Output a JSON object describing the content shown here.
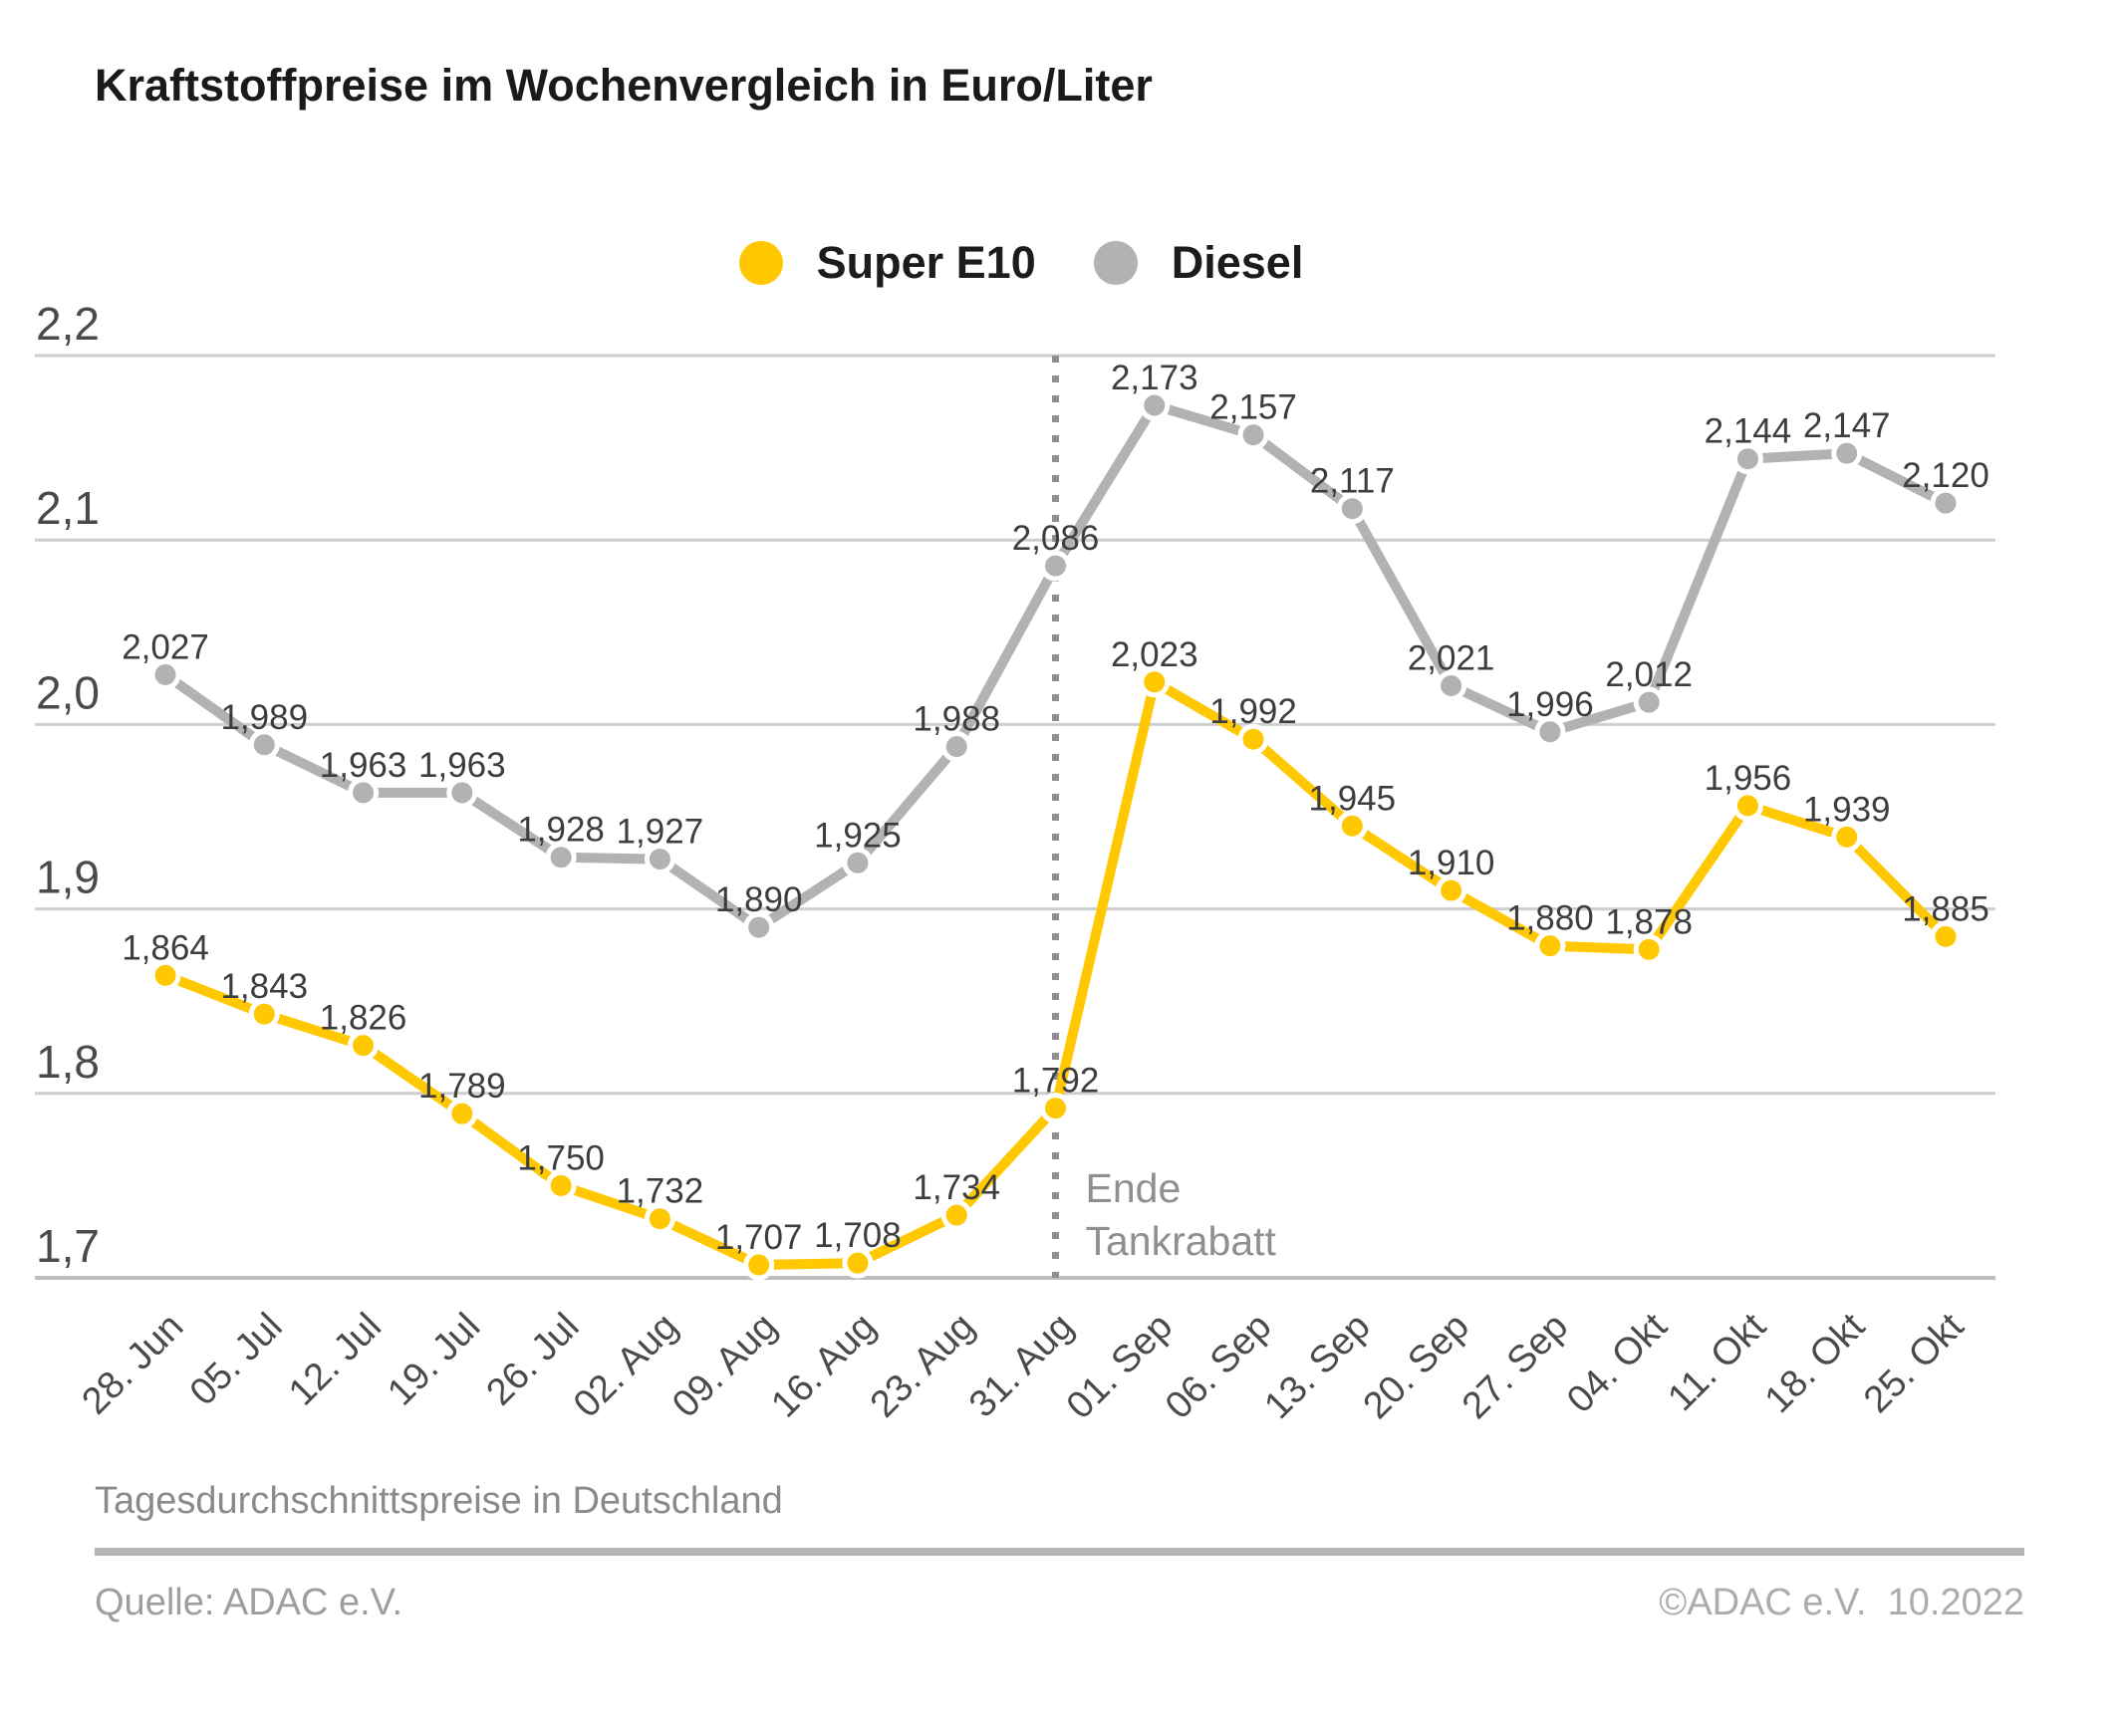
{
  "title": "Kraftstoffpreise im Wochenvergleich in Euro/Liter",
  "legend": [
    {
      "label": "Super E10",
      "color": "#FFC800"
    },
    {
      "label": "Diesel",
      "color": "#B2B2B2"
    }
  ],
  "footer": {
    "note": "Tagesdurchschnittspreise in Deutschland",
    "source": "Quelle: ADAC e.V.",
    "copyright": "©ADAC e.V.  10.2022"
  },
  "chart_data": {
    "type": "line",
    "title": "Kraftstoffpreise im Wochenvergleich in Euro/Liter",
    "xlabel": "",
    "ylabel": "Euro/Liter",
    "ylim": [
      1.7,
      2.2
    ],
    "grid": true,
    "legend_position": "top-center",
    "categories": [
      "28. Jun",
      "05. Jul",
      "12. Jul",
      "19. Jul",
      "26. Jul",
      "02. Aug",
      "09. Aug",
      "16. Aug",
      "23. Aug",
      "31. Aug",
      "01. Sep",
      "06. Sep",
      "13. Sep",
      "20. Sep",
      "27. Sep",
      "04. Okt",
      "11. Okt",
      "18. Okt",
      "25. Okt"
    ],
    "yticks": [
      {
        "label": "2,2",
        "value": 2.2
      },
      {
        "label": "2,1",
        "value": 2.1
      },
      {
        "label": "2,0",
        "value": 2.0
      },
      {
        "label": "1,9",
        "value": 1.9
      },
      {
        "label": "1,8",
        "value": 1.8
      },
      {
        "label": "1,7",
        "value": 1.7
      }
    ],
    "series": [
      {
        "name": "Diesel",
        "color": "#B2B2B2",
        "values": [
          2.027,
          1.989,
          1.963,
          1.963,
          1.928,
          1.927,
          1.89,
          1.925,
          1.988,
          2.086,
          2.173,
          2.157,
          2.117,
          2.021,
          1.996,
          2.012,
          2.144,
          2.147,
          2.12
        ],
        "labels": [
          "2,027",
          "1,989",
          "1,963",
          "1,963",
          "1,928",
          "1,927",
          "1,890",
          "1,925",
          "1,988",
          "2,086",
          "2,173",
          "2,157",
          "2,117",
          "2,021",
          "1,996",
          "2,012",
          "2,144",
          "2,147",
          "2,120"
        ]
      },
      {
        "name": "Super E10",
        "color": "#FFC800",
        "values": [
          1.864,
          1.843,
          1.826,
          1.789,
          1.75,
          1.732,
          1.707,
          1.708,
          1.734,
          1.792,
          2.023,
          1.992,
          1.945,
          1.91,
          1.88,
          1.878,
          1.956,
          1.939,
          1.885
        ],
        "labels": [
          "1,864",
          "1,843",
          "1,826",
          "1,789",
          "1,750",
          "1,732",
          "1,707",
          "1,708",
          "1,734",
          "1,792",
          "2,023",
          "1,992",
          "1,945",
          "1,910",
          "1,880",
          "1,878",
          "1,956",
          "1,939",
          "1,885"
        ]
      }
    ],
    "annotation": {
      "x_category": "31. Aug",
      "lines": [
        "Ende",
        "Tankrabatt"
      ],
      "line_style": "dotted",
      "color": "#8f8f8f"
    }
  }
}
